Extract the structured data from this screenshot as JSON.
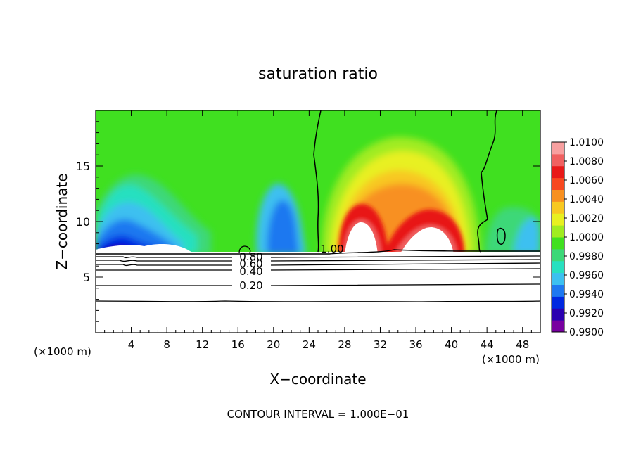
{
  "chart_data": {
    "type": "heatmap",
    "title": "saturation ratio",
    "xlabel": "X−coordinate",
    "ylabel": "Z−coordinate",
    "x_unit_left": "(×1000 m)",
    "x_unit_right": "(×1000 m)",
    "xlim": [
      0,
      50
    ],
    "ylim": [
      0,
      20
    ],
    "x_ticks": [
      4,
      8,
      12,
      16,
      20,
      24,
      28,
      32,
      36,
      40,
      44,
      48
    ],
    "x_tick_labels": [
      "4",
      "8",
      "12",
      "16",
      "20",
      "24",
      "28",
      "32",
      "36",
      "40",
      "44",
      "48"
    ],
    "y_ticks": [
      5,
      10,
      15
    ],
    "y_tick_labels": [
      "5",
      "10",
      "15"
    ],
    "colorbar_levels": [
      0.99,
      0.992,
      0.994,
      0.996,
      0.998,
      1.0,
      1.002,
      1.004,
      1.006,
      1.008,
      1.01
    ],
    "colorbar_labels": [
      "1.0100",
      "1.0080",
      "1.0060",
      "1.0040",
      "1.0020",
      "1.0000",
      "0.9980",
      "0.9960",
      "0.9940",
      "0.9920",
      "0.9900"
    ],
    "colormap": [
      "#7800a0",
      "#2a00b0",
      "#0028e0",
      "#1e78f0",
      "#3cc0f0",
      "#28e0c0",
      "#3cd878",
      "#40e020",
      "#a0ec20",
      "#e8f020",
      "#f8c820",
      "#f89020",
      "#f84820",
      "#e81818",
      "#f06060",
      "#f8a0a0"
    ],
    "contour_labels": [
      "0.20",
      "0.40",
      "0.60",
      "0.80",
      "1.00"
    ],
    "contour_interval_text": "CONTOUR INTERVAL = 1.000E−01",
    "grid": false
  }
}
